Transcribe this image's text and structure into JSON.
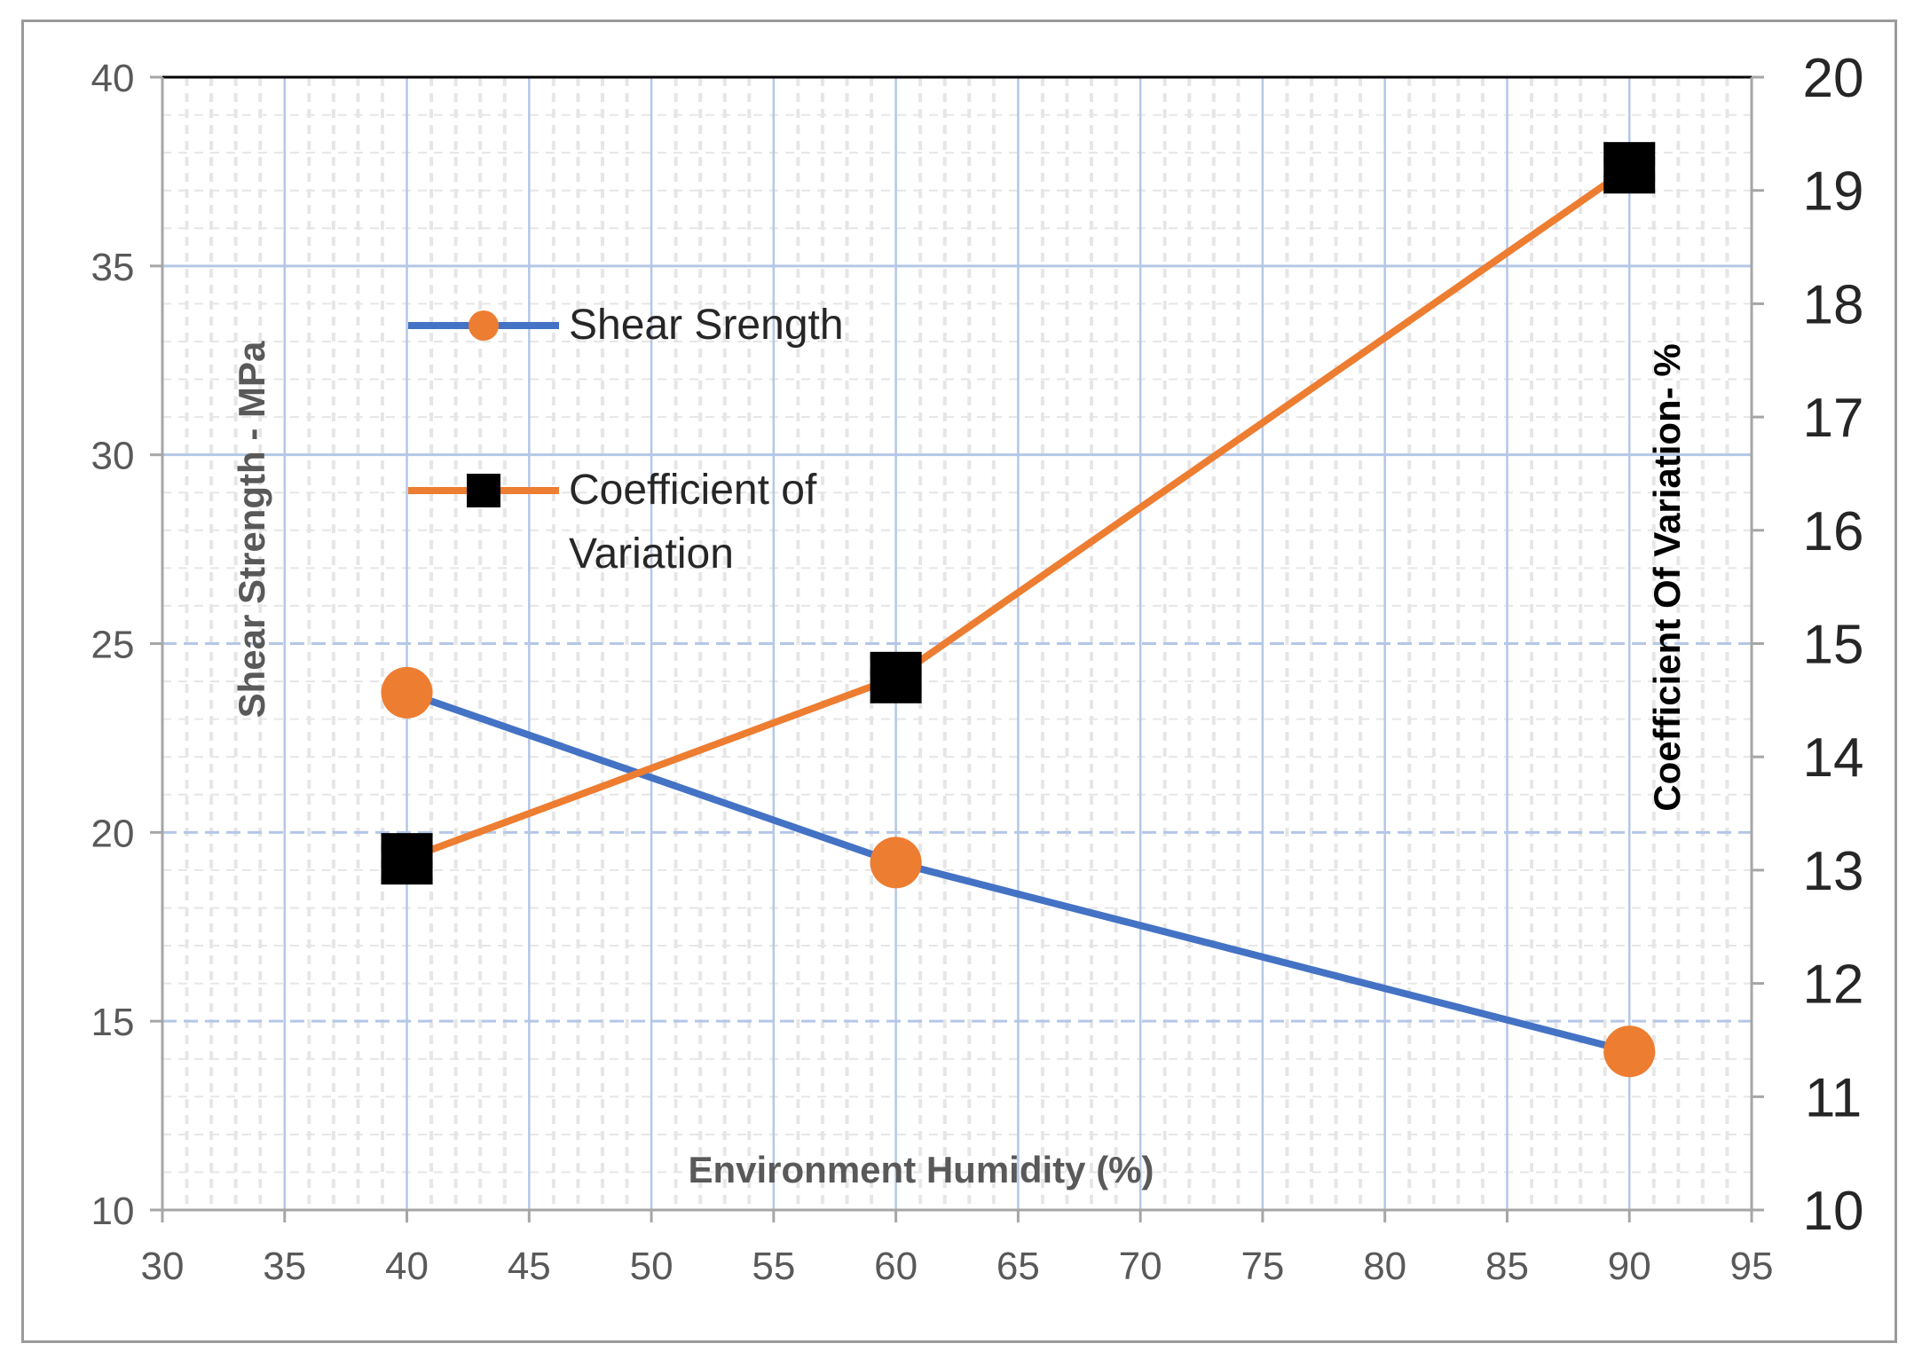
{
  "chart_data": {
    "type": "line",
    "x_axis": {
      "title": "Environment Humidity (%)",
      "min": 30,
      "max": 95,
      "ticks": [
        30,
        35,
        40,
        45,
        50,
        55,
        60,
        65,
        70,
        75,
        80,
        85,
        90,
        95
      ]
    },
    "y_left": {
      "title": "Shear Strength - MPa",
      "min": 10,
      "max": 40,
      "ticks": [
        10,
        15,
        20,
        25,
        30,
        35,
        40
      ]
    },
    "y_right": {
      "title": "Coefficient Of Variation- %",
      "min": 10,
      "max": 20,
      "ticks": [
        10,
        11,
        12,
        13,
        14,
        15,
        16,
        17,
        18,
        19,
        20
      ]
    },
    "series": [
      {
        "name": "Shear Srength",
        "axis": "left",
        "line_color": "#4472C4",
        "marker": "circle",
        "marker_color": "#ED7D31",
        "x": [
          40,
          60,
          90
        ],
        "values": [
          23.7,
          19.2,
          14.2
        ]
      },
      {
        "name": "Coefficient of Variation",
        "name_lines": [
          "Coefficient of",
          "Variation"
        ],
        "axis": "right",
        "line_color": "#ED7D31",
        "marker": "square",
        "marker_color": "#000000",
        "x": [
          40,
          60,
          90
        ],
        "values": [
          13.1,
          14.7,
          19.2
        ]
      }
    ],
    "legend_position": "top-left",
    "grid": true,
    "colors": {
      "grid_major": "#B4C7E7",
      "grid_minor": "#E6E6E6",
      "axis": "#A6A6A6",
      "top_border": "#000000"
    }
  }
}
